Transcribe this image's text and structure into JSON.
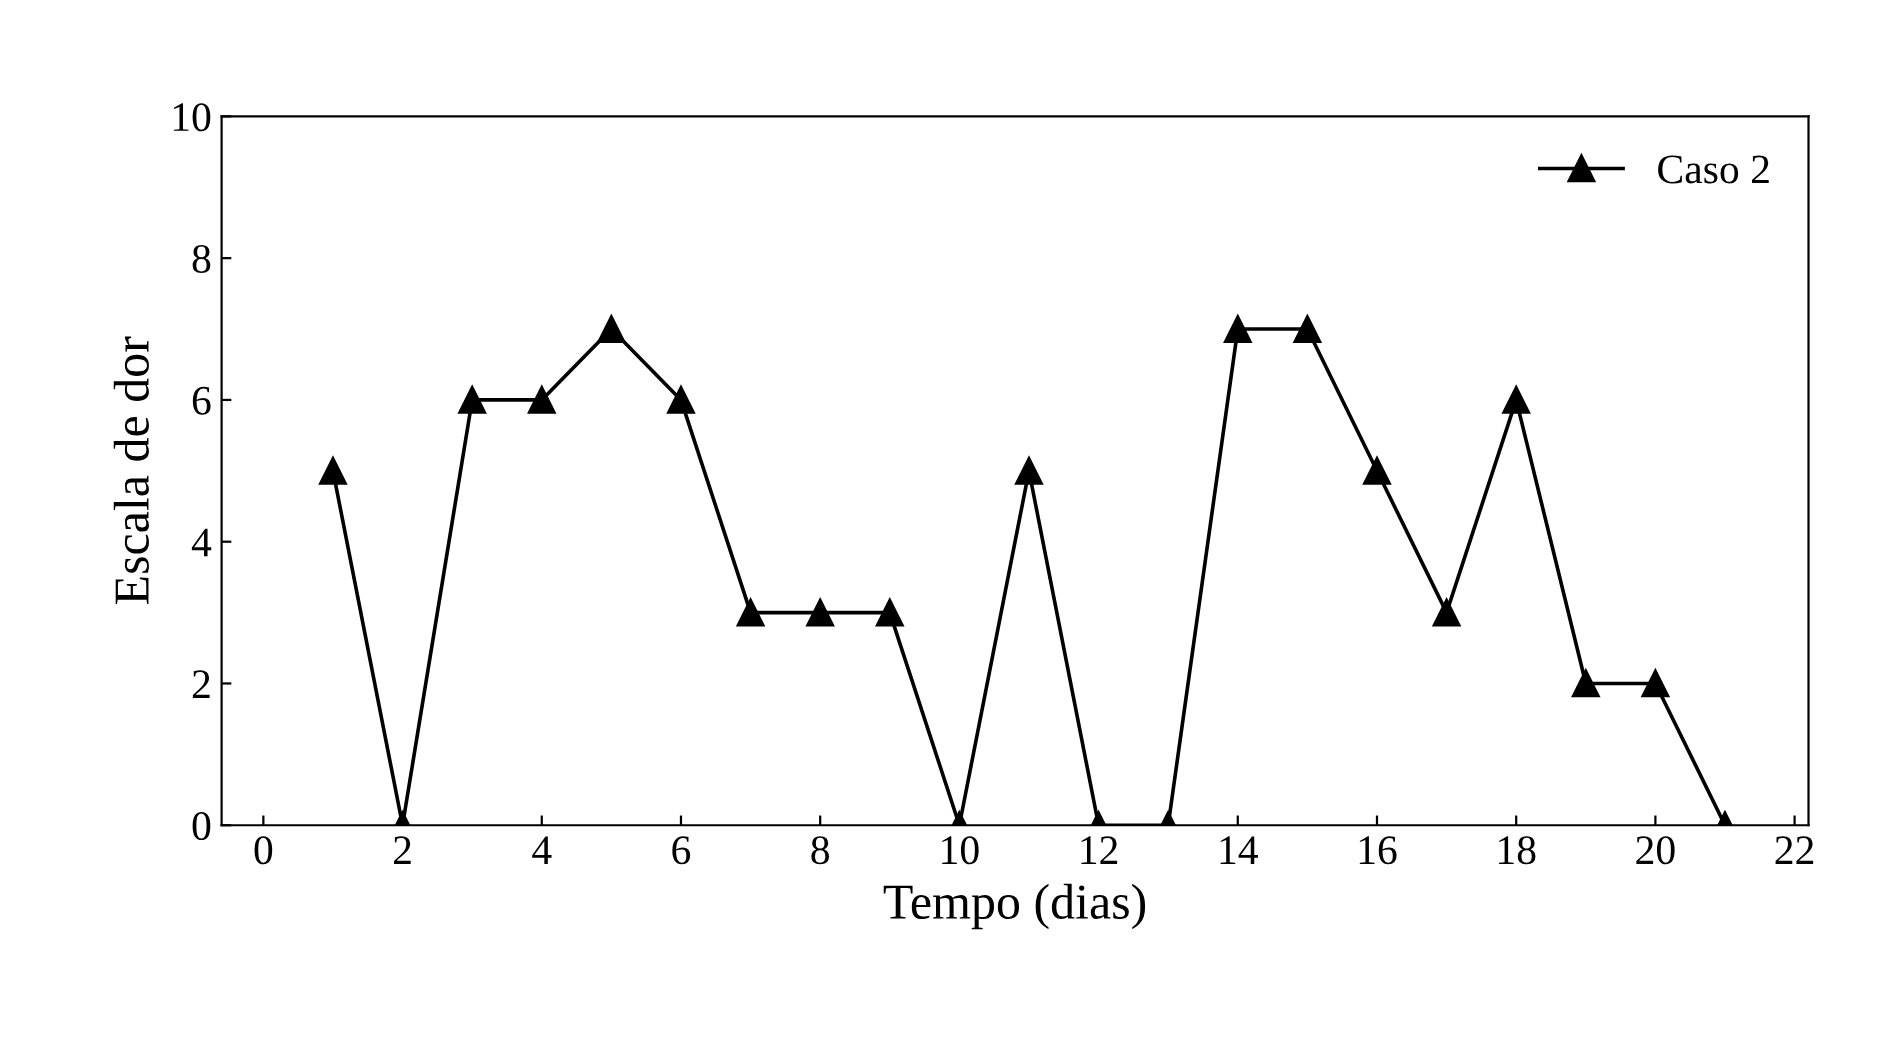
{
  "chart_data": {
    "type": "line",
    "xlabel": "Tempo (dias)",
    "ylabel": "Escala de dor",
    "x": [
      1,
      2,
      3,
      4,
      5,
      6,
      7,
      8,
      9,
      10,
      11,
      12,
      13,
      14,
      15,
      16,
      17,
      18,
      19,
      20,
      21
    ],
    "series": [
      {
        "name": "Caso 2",
        "color": "#000000",
        "values": [
          5,
          0,
          6,
          6,
          7,
          6,
          3,
          3,
          3,
          0,
          5,
          0,
          0,
          7,
          7,
          5,
          3,
          6,
          2,
          2,
          0
        ]
      }
    ],
    "xlim": [
      -0.6,
      22.2
    ],
    "xticks": [
      0,
      2,
      4,
      6,
      8,
      10,
      12,
      14,
      16,
      18,
      20,
      22
    ],
    "ylim": [
      0,
      10
    ],
    "yticks": [
      0,
      2,
      4,
      6,
      8,
      10
    ],
    "marker": "triangle",
    "line_style": "solid",
    "grid": false,
    "legend": "top right"
  }
}
